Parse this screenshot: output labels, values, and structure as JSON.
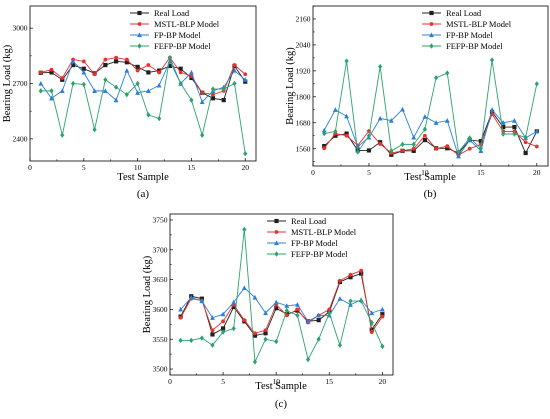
{
  "chart_data": [
    {
      "type": "line",
      "panel_label": "(a)",
      "xlabel": "Test Sample",
      "ylabel": "Bearing Load (kg)",
      "xlim": [
        0,
        21
      ],
      "ylim": [
        2280,
        3120
      ],
      "xticks": [
        0,
        5,
        10,
        15,
        20
      ],
      "yticks": [
        2400,
        2700,
        3000
      ],
      "minor_ytick_step": 150,
      "legend_position": "top-right",
      "x": [
        1,
        2,
        3,
        4,
        5,
        6,
        7,
        8,
        9,
        10,
        11,
        12,
        13,
        14,
        15,
        16,
        17,
        18,
        19,
        20
      ],
      "series": [
        {
          "name": "Real Load",
          "color": "#202020",
          "marker": "square",
          "values": [
            2758,
            2760,
            2720,
            2800,
            2780,
            2755,
            2800,
            2820,
            2815,
            2790,
            2760,
            2770,
            2795,
            2780,
            2730,
            2650,
            2620,
            2610,
            2795,
            2710
          ]
        },
        {
          "name": "MSTL-BLP Model",
          "color": "#e8312d",
          "marker": "circle",
          "values": [
            2760,
            2775,
            2730,
            2830,
            2820,
            2750,
            2830,
            2840,
            2830,
            2770,
            2800,
            2760,
            2840,
            2760,
            2740,
            2650,
            2640,
            2660,
            2800,
            2750
          ]
        },
        {
          "name": "FP-BP Model",
          "color": "#2c7fd6",
          "marker": "triangle",
          "values": [
            2700,
            2620,
            2660,
            2820,
            2760,
            2660,
            2660,
            2610,
            2770,
            2650,
            2660,
            2690,
            2820,
            2700,
            2760,
            2600,
            2660,
            2680,
            2770,
            2720
          ]
        },
        {
          "name": "FEFP-BP Model",
          "color": "#2ca36e",
          "marker": "diamond",
          "values": [
            2660,
            2660,
            2420,
            2700,
            2695,
            2450,
            2720,
            2680,
            2640,
            2700,
            2530,
            2510,
            2840,
            2700,
            2610,
            2420,
            2670,
            2670,
            2700,
            2320
          ]
        }
      ]
    },
    {
      "type": "line",
      "panel_label": "(b)",
      "xlabel": "Test Sample",
      "ylabel": "Bearing Load (kg)",
      "xlim": [
        0,
        21
      ],
      "ylim": [
        1480,
        2220
      ],
      "xticks": [
        0,
        5,
        10,
        15,
        20
      ],
      "yticks": [
        1560,
        1680,
        1800,
        1920,
        2040,
        2160
      ],
      "minor_ytick_step": 60,
      "legend_position": "top-right",
      "x": [
        1,
        2,
        3,
        4,
        5,
        6,
        7,
        8,
        9,
        10,
        11,
        12,
        13,
        14,
        15,
        16,
        17,
        18,
        19,
        20
      ],
      "series": [
        {
          "name": "Real Load",
          "color": "#202020",
          "marker": "square",
          "values": [
            1572,
            1620,
            1630,
            1552,
            1552,
            1590,
            1532,
            1550,
            1550,
            1600,
            1562,
            1562,
            1540,
            1600,
            1595,
            1730,
            1660,
            1660,
            1540,
            1640
          ]
        },
        {
          "name": "MSTL-BLP Model",
          "color": "#e8312d",
          "marker": "circle",
          "values": [
            1562,
            1630,
            1620,
            1575,
            1642,
            1582,
            1540,
            1550,
            1560,
            1620,
            1560,
            1572,
            1530,
            1560,
            1580,
            1720,
            1640,
            1640,
            1590,
            1570
          ]
        },
        {
          "name": "FP-BP Model",
          "color": "#2c7fd6",
          "marker": "triangle",
          "values": [
            1645,
            1740,
            1710,
            1570,
            1612,
            1700,
            1690,
            1742,
            1612,
            1708,
            1680,
            1690,
            1525,
            1600,
            1550,
            1740,
            1680,
            1690,
            1610,
            1640
          ]
        },
        {
          "name": "FEFP-BP Model",
          "color": "#2ca36e",
          "marker": "diamond",
          "values": [
            1630,
            1640,
            1965,
            1545,
            1620,
            1940,
            1550,
            1580,
            1580,
            1650,
            1888,
            1910,
            1545,
            1610,
            1562,
            1970,
            1628,
            1628,
            1612,
            1860
          ]
        }
      ]
    },
    {
      "type": "line",
      "panel_label": "(c)",
      "xlabel": "Test Sample",
      "ylabel": "Bearing Load (kg)",
      "xlim": [
        0,
        21
      ],
      "ylim": [
        3490,
        3760
      ],
      "xticks": [
        0,
        5,
        10,
        15,
        20
      ],
      "yticks": [
        3500,
        3550,
        3600,
        3650,
        3700,
        3750
      ],
      "minor_ytick_step": 25,
      "legend_position": "top-right",
      "x": [
        1,
        2,
        3,
        4,
        5,
        6,
        7,
        8,
        9,
        10,
        11,
        12,
        13,
        14,
        15,
        16,
        17,
        18,
        19,
        20
      ],
      "series": [
        {
          "name": "Real Load",
          "color": "#202020",
          "marker": "square",
          "values": [
            3588,
            3622,
            3618,
            3558,
            3568,
            3604,
            3580,
            3556,
            3560,
            3602,
            3592,
            3598,
            3580,
            3582,
            3596,
            3646,
            3654,
            3660,
            3566,
            3592
          ]
        },
        {
          "name": "MSTL-BLP Model",
          "color": "#e8312d",
          "marker": "circle",
          "values": [
            3586,
            3618,
            3615,
            3565,
            3580,
            3608,
            3582,
            3560,
            3565,
            3608,
            3590,
            3600,
            3578,
            3590,
            3600,
            3648,
            3658,
            3665,
            3562,
            3588
          ]
        },
        {
          "name": "FP-BP Model",
          "color": "#2c7fd6",
          "marker": "triangle",
          "values": [
            3600,
            3620,
            3614,
            3586,
            3592,
            3612,
            3636,
            3620,
            3594,
            3612,
            3606,
            3608,
            3580,
            3590,
            3590,
            3618,
            3608,
            3616,
            3594,
            3600
          ]
        },
        {
          "name": "FEFP-BP Model",
          "color": "#2ca36e",
          "marker": "diamond",
          "values": [
            3548,
            3548,
            3552,
            3540,
            3562,
            3568,
            3734,
            3512,
            3550,
            3546,
            3598,
            3590,
            3516,
            3550,
            3594,
            3540,
            3614,
            3614,
            3578,
            3538
          ]
        }
      ]
    }
  ]
}
